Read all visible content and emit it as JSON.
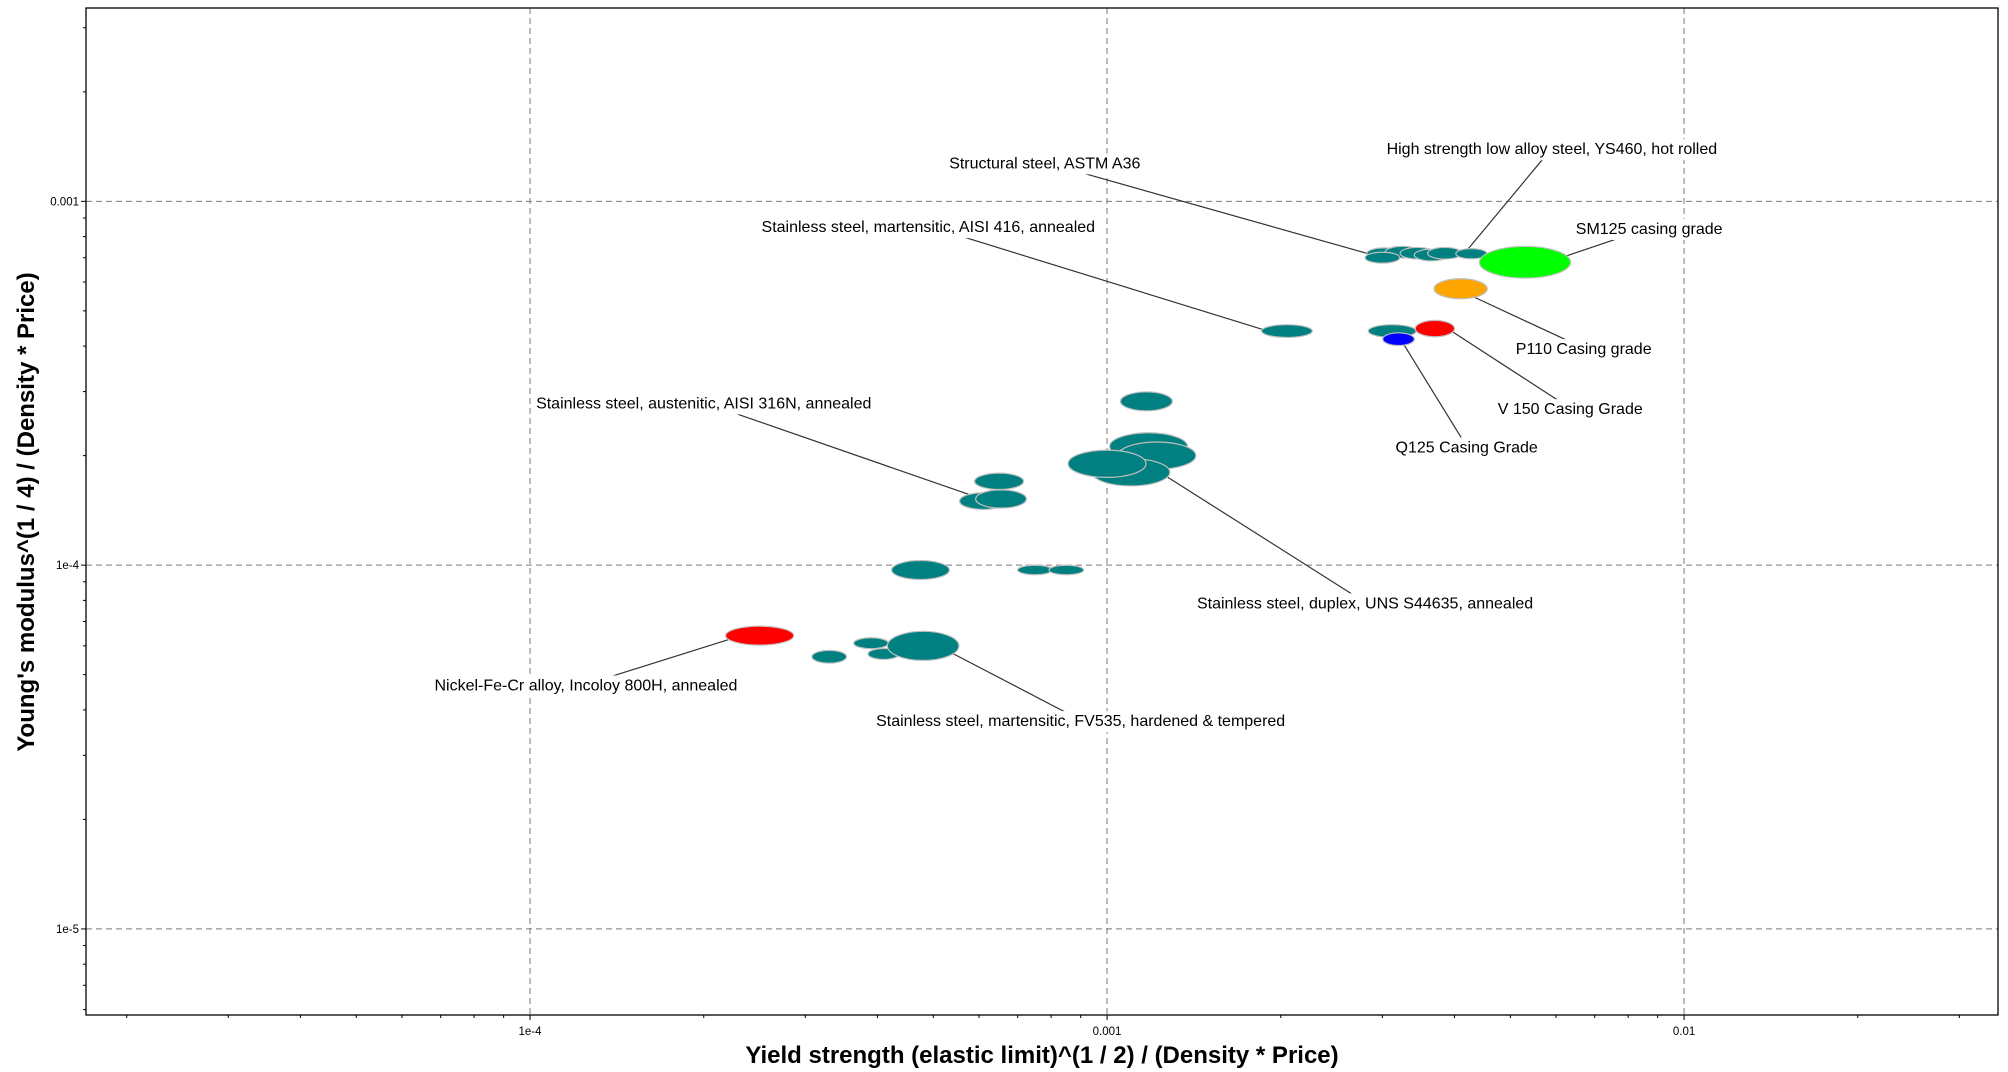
{
  "chart_data": {
    "type": "scatter",
    "xscale": "log",
    "yscale": "log",
    "xlim": [
      1.7e-05,
      0.035
    ],
    "ylim": [
      5.8e-06,
      0.0034
    ],
    "grid": true,
    "xlabel": "Yield strength (elastic limit)^(1 / 2) / (Density * Price)",
    "ylabel": "Young's modulus^(1 / 4) / (Density * Price)",
    "xticks": [
      {
        "value": 0.0001,
        "label": "1e-4"
      },
      {
        "value": 0.001,
        "label": "0.001"
      },
      {
        "value": 0.01,
        "label": "0.01"
      }
    ],
    "yticks": [
      {
        "value": 1e-05,
        "label": "1e-5"
      },
      {
        "value": 0.0001,
        "label": "1e-4"
      },
      {
        "value": 0.001,
        "label": "0.001"
      }
    ],
    "colors": {
      "default": "#008080",
      "red": "#ff0000",
      "orange": "#ffa500",
      "green": "#00ff00",
      "blue": "#0000ff"
    },
    "points": [
      {
        "x": 0.00302,
        "y": 0.000718,
        "w": 0.06,
        "h": 0.032,
        "color": "#008080"
      },
      {
        "x": 0.00325,
        "y": 0.000725,
        "w": 0.06,
        "h": 0.032,
        "color": "#008080"
      },
      {
        "x": 0.00345,
        "y": 0.00072,
        "w": 0.06,
        "h": 0.032,
        "color": "#008080"
      },
      {
        "x": 0.00365,
        "y": 0.000712,
        "w": 0.06,
        "h": 0.032,
        "color": "#008080"
      },
      {
        "x": 0.00385,
        "y": 0.00072,
        "w": 0.06,
        "h": 0.032,
        "color": "#008080"
      },
      {
        "x": 0.003,
        "y": 0.0007,
        "w": 0.06,
        "h": 0.03,
        "color": "#008080"
      },
      {
        "x": 0.00428,
        "y": 0.000718,
        "w": 0.054,
        "h": 0.028,
        "color": "#008080"
      },
      {
        "x": 0.0053,
        "y": 0.00068,
        "w": 0.158,
        "h": 0.087,
        "color": "#00ff00"
      },
      {
        "x": 0.0041,
        "y": 0.000575,
        "w": 0.092,
        "h": 0.055,
        "color": "#ffa500"
      },
      {
        "x": 0.00205,
        "y": 0.00044,
        "w": 0.088,
        "h": 0.035,
        "color": "#008080"
      },
      {
        "x": 0.00312,
        "y": 0.00044,
        "w": 0.083,
        "h": 0.035,
        "color": "#008080"
      },
      {
        "x": 0.0037,
        "y": 0.000447,
        "w": 0.068,
        "h": 0.045,
        "color": "#ff0000"
      },
      {
        "x": 0.0032,
        "y": 0.000418,
        "w": 0.055,
        "h": 0.035,
        "color": "#0000ff"
      },
      {
        "x": 0.00117,
        "y": 0.000282,
        "w": 0.09,
        "h": 0.052,
        "color": "#008080"
      },
      {
        "x": 0.00118,
        "y": 0.000212,
        "w": 0.135,
        "h": 0.075,
        "color": "#008080"
      },
      {
        "x": 0.00122,
        "y": 0.0002,
        "w": 0.135,
        "h": 0.075,
        "color": "#008080"
      },
      {
        "x": 0.0011,
        "y": 0.00018,
        "w": 0.135,
        "h": 0.075,
        "color": "#008080"
      },
      {
        "x": 0.001,
        "y": 0.00019,
        "w": 0.135,
        "h": 0.075,
        "color": "#008080"
      },
      {
        "x": 0.00065,
        "y": 0.00017,
        "w": 0.085,
        "h": 0.045,
        "color": "#008080"
      },
      {
        "x": 0.00061,
        "y": 0.00015,
        "w": 0.082,
        "h": 0.046,
        "color": "#008080"
      },
      {
        "x": 0.000655,
        "y": 0.000152,
        "w": 0.088,
        "h": 0.05,
        "color": "#008080"
      },
      {
        "x": 0.000475,
        "y": 9.7e-05,
        "w": 0.1,
        "h": 0.052,
        "color": "#008080"
      },
      {
        "x": 0.00075,
        "y": 9.7e-05,
        "w": 0.06,
        "h": 0.026,
        "color": "#008080"
      },
      {
        "x": 0.00085,
        "y": 9.7e-05,
        "w": 0.06,
        "h": 0.026,
        "color": "#008080"
      },
      {
        "x": 0.00025,
        "y": 6.4e-05,
        "w": 0.118,
        "h": 0.052,
        "color": "#ff0000"
      },
      {
        "x": 0.00033,
        "y": 5.6e-05,
        "w": 0.06,
        "h": 0.035,
        "color": "#008080"
      },
      {
        "x": 0.00039,
        "y": 6.1e-05,
        "w": 0.06,
        "h": 0.03,
        "color": "#008080"
      },
      {
        "x": 0.00041,
        "y": 5.7e-05,
        "w": 0.054,
        "h": 0.03,
        "color": "#008080"
      },
      {
        "x": 0.00048,
        "y": 6e-05,
        "w": 0.124,
        "h": 0.08,
        "color": "#008080"
      }
    ],
    "annotations": [
      {
        "text": "Structural steel, ASTM A36",
        "tx": 0.00078,
        "ty": 0.00128,
        "ax": 0.003,
        "ay": 0.0007
      },
      {
        "text": "High strength low alloy steel, YS460, hot rolled",
        "tx": 0.0059,
        "ty": 0.0014,
        "ax": 0.00418,
        "ay": 0.000725
      },
      {
        "text": "SM125 casing grade",
        "tx": 0.0087,
        "ty": 0.000845,
        "ax": 0.0058,
        "ay": 0.00068
      },
      {
        "text": "Stainless steel, martensitic, AISI 416, annealed",
        "tx": 0.00049,
        "ty": 0.000855,
        "ax": 0.0019,
        "ay": 0.00044
      },
      {
        "text": "P110 Casing grade",
        "tx": 0.0067,
        "ty": 0.000395,
        "ax": 0.0043,
        "ay": 0.000548
      },
      {
        "text": "V 150 Casing Grade",
        "tx": 0.00635,
        "ty": 0.00027,
        "ax": 0.00395,
        "ay": 0.00044
      },
      {
        "text": "Q125 Casing Grade",
        "tx": 0.0042,
        "ty": 0.000212,
        "ax": 0.00325,
        "ay": 0.00041
      },
      {
        "text": "Stainless steel, austenitic, AISI 316N, annealed",
        "tx": 0.0002,
        "ty": 0.00028,
        "ax": 0.0006,
        "ay": 0.000153
      },
      {
        "text": "Stainless steel, duplex, UNS S44635, annealed",
        "tx": 0.0028,
        "ty": 7.9e-05,
        "ax": 0.00127,
        "ay": 0.000175
      },
      {
        "text": "Nickel-Fe-Cr alloy, Incoloy 800H, annealed",
        "tx": 0.000125,
        "ty": 4.7e-05,
        "ax": 0.000232,
        "ay": 6.4e-05
      },
      {
        "text": "Stainless steel, martensitic, FV535, hardened & tempered",
        "tx": 0.0009,
        "ty": 3.75e-05,
        "ax": 0.00052,
        "ay": 5.9e-05
      }
    ]
  }
}
